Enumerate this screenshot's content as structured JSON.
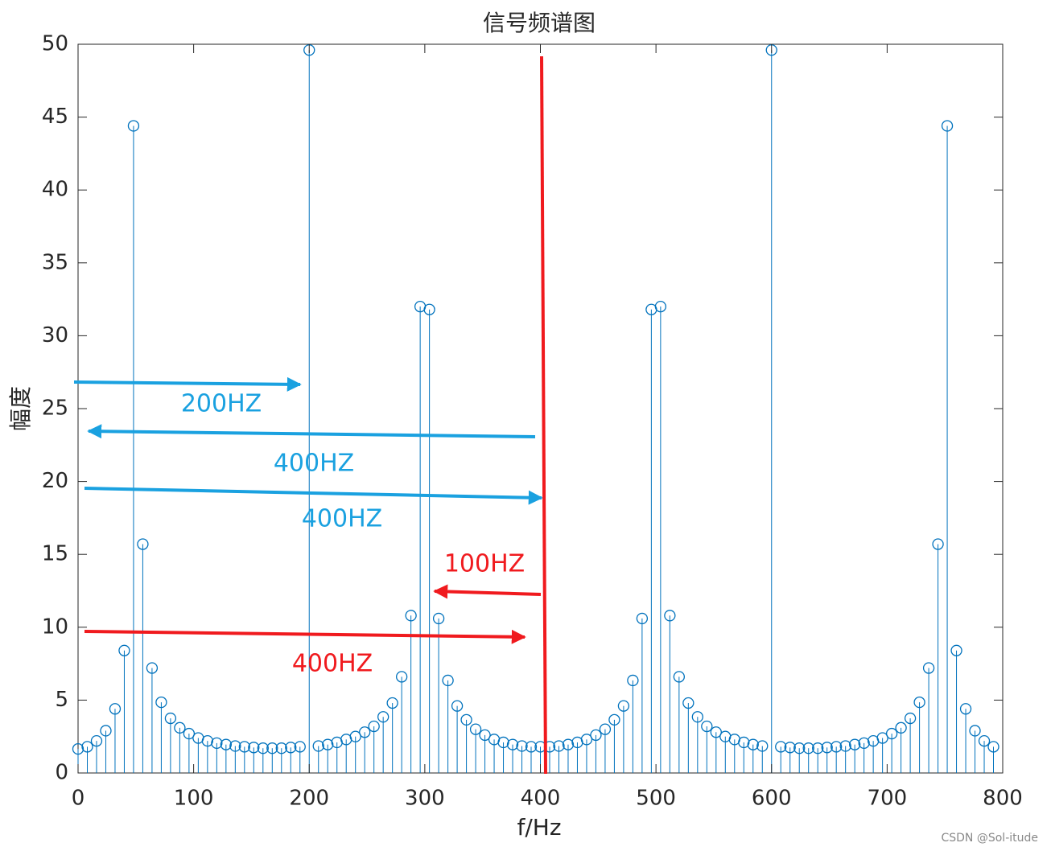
{
  "chart_data": {
    "type": "stem",
    "title": "信号频谱图",
    "xlabel": "f/Hz",
    "ylabel": "幅度",
    "color": "#0072bd",
    "x": [
      0,
      8,
      16,
      24,
      32,
      40,
      48,
      56,
      64,
      72,
      80,
      88,
      96,
      104,
      112,
      120,
      128,
      136,
      144,
      152,
      160,
      168,
      176,
      184,
      192,
      200,
      208,
      216,
      224,
      232,
      240,
      248,
      256,
      264,
      272,
      280,
      288,
      296,
      304,
      312,
      320,
      328,
      336,
      344,
      352,
      360,
      368,
      376,
      384,
      392,
      400,
      408,
      416,
      424,
      432,
      440,
      448,
      456,
      464,
      472,
      480,
      488,
      496,
      504,
      512,
      520,
      528,
      536,
      544,
      552,
      560,
      568,
      576,
      584,
      592,
      600,
      608,
      616,
      624,
      632,
      640,
      648,
      656,
      664,
      672,
      680,
      688,
      696,
      704,
      712,
      720,
      728,
      736,
      744,
      752,
      760,
      768,
      776,
      784,
      792
    ],
    "values": [
      1.65,
      1.8,
      2.2,
      2.9,
      4.4,
      8.4,
      44.4,
      15.7,
      7.2,
      4.85,
      3.75,
      3.1,
      2.7,
      2.4,
      2.2,
      2.05,
      1.95,
      1.85,
      1.8,
      1.75,
      1.7,
      1.7,
      1.7,
      1.75,
      1.8,
      49.6,
      1.85,
      1.95,
      2.1,
      2.3,
      2.5,
      2.8,
      3.2,
      3.85,
      4.8,
      6.6,
      10.8,
      32.0,
      31.8,
      10.6,
      6.35,
      4.6,
      3.65,
      3.0,
      2.6,
      2.3,
      2.1,
      1.95,
      1.85,
      1.8,
      1.8,
      1.8,
      1.85,
      1.95,
      2.1,
      2.3,
      2.6,
      3.0,
      3.65,
      4.6,
      6.35,
      10.6,
      31.8,
      32.0,
      10.8,
      6.6,
      4.8,
      3.85,
      3.2,
      2.8,
      2.5,
      2.3,
      2.1,
      1.95,
      1.85,
      49.6,
      1.8,
      1.75,
      1.7,
      1.7,
      1.7,
      1.75,
      1.8,
      1.85,
      1.95,
      2.05,
      2.2,
      2.4,
      2.7,
      3.1,
      3.75,
      4.85,
      7.2,
      15.7,
      44.4,
      8.4,
      4.4,
      2.9,
      2.2,
      1.8
    ],
    "xlim": [
      0,
      800
    ],
    "xticks": [
      0,
      100,
      200,
      300,
      400,
      500,
      600,
      700,
      800
    ],
    "ylim": [
      0,
      50
    ],
    "yticks": [
      0,
      5,
      10,
      15,
      20,
      25,
      30,
      35,
      40,
      45,
      50
    ],
    "annotations": [
      "200HZ",
      "400HZ",
      "400HZ",
      "100HZ",
      "400HZ"
    ]
  },
  "watermark": "CSDN @Sol-itude"
}
